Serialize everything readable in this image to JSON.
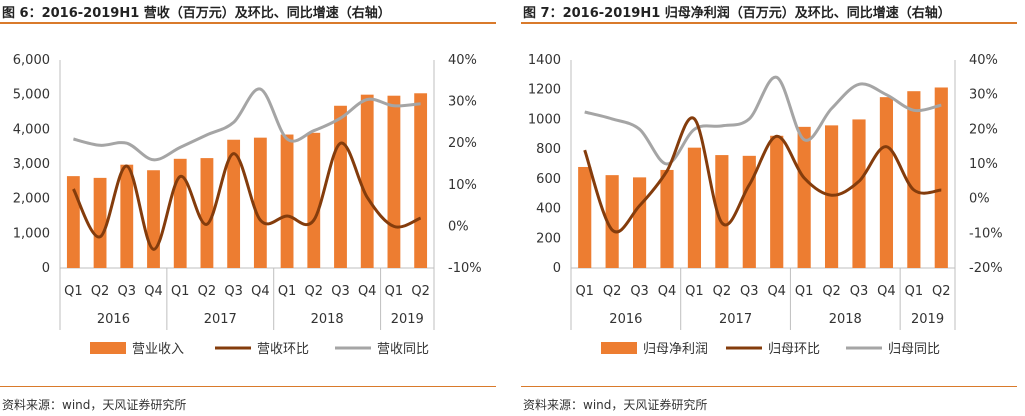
{
  "colors": {
    "bar": "#ed7d31",
    "mom": "#843c0c",
    "yoy": "#a5a5a5",
    "axis": "#bfbfbf",
    "accent": "#d97a2b"
  },
  "left": {
    "title": "图 6：2016-2019H1 营收（百万元）及环比、同比增速（右轴）",
    "source": "资料来源：wind，天风证券研究所",
    "chart_data": {
      "type": "bar",
      "categories": [
        "Q1",
        "Q2",
        "Q3",
        "Q4",
        "Q1",
        "Q2",
        "Q3",
        "Q4",
        "Q1",
        "Q2",
        "Q3",
        "Q4",
        "Q1",
        "Q2"
      ],
      "year_labels": [
        "2016",
        "2017",
        "2018",
        "2019"
      ],
      "year_spans": [
        4,
        4,
        4,
        2
      ],
      "left_ticks": [
        "6,000",
        "5,000",
        "4,000",
        "3,000",
        "2,000",
        "1,000",
        "0"
      ],
      "right_ticks": [
        "40%",
        "30%",
        "20%",
        "10%",
        "0%",
        "-10%"
      ],
      "ylim_left": [
        0,
        6000
      ],
      "ylim_right": [
        -10,
        40
      ],
      "grid": false,
      "legend_position": "bottom",
      "series": [
        {
          "name": "营业收入",
          "type": "bar",
          "axis": "left",
          "values": [
            2650,
            2600,
            2980,
            2820,
            3150,
            3170,
            3700,
            3760,
            3850,
            3900,
            4680,
            5000,
            4970,
            5040
          ]
        },
        {
          "name": "营收环比",
          "type": "line",
          "axis": "right",
          "values": [
            9,
            -2.5,
            14.5,
            -5.5,
            12,
            0.5,
            17.5,
            1.5,
            2.5,
            1.5,
            20,
            7,
            0,
            2
          ]
        },
        {
          "name": "营收同比",
          "type": "line",
          "axis": "right",
          "values": [
            21,
            19.5,
            20,
            16,
            19,
            22,
            25,
            33,
            21,
            23,
            26,
            30.5,
            29,
            29.5
          ]
        }
      ]
    }
  },
  "right": {
    "title": "图 7：2016-2019H1 归母净利润（百万元）及环比、同比增速（右轴）",
    "source": "资料来源：wind，天风证券研究所",
    "chart_data": {
      "type": "bar",
      "categories": [
        "Q1",
        "Q2",
        "Q3",
        "Q4",
        "Q1",
        "Q2",
        "Q3",
        "Q4",
        "Q1",
        "Q2",
        "Q3",
        "Q4",
        "Q1",
        "Q2"
      ],
      "year_labels": [
        "2016",
        "2017",
        "2018",
        "2019"
      ],
      "year_spans": [
        4,
        4,
        4,
        2
      ],
      "left_ticks": [
        "1400",
        "1200",
        "1000",
        "800",
        "600",
        "400",
        "200",
        "0"
      ],
      "right_ticks": [
        "40%",
        "30%",
        "20%",
        "10%",
        "0%",
        "-10%",
        "-20%"
      ],
      "ylim_left": [
        0,
        1400
      ],
      "ylim_right": [
        -20,
        40
      ],
      "grid": false,
      "legend_position": "bottom",
      "series": [
        {
          "name": "归母净利润",
          "type": "bar",
          "axis": "left",
          "values": [
            680,
            625,
            610,
            660,
            810,
            760,
            755,
            890,
            950,
            960,
            1000,
            1150,
            1190,
            1215
          ]
        },
        {
          "name": "归母环比",
          "type": "line",
          "axis": "right",
          "values": [
            14,
            -9,
            -2,
            8,
            23,
            -7,
            4,
            18,
            6,
            1,
            5,
            15,
            2.5,
            2.5
          ]
        },
        {
          "name": "归母同比",
          "type": "line",
          "axis": "right",
          "values": [
            25,
            23,
            20,
            10,
            20,
            21,
            23,
            35,
            17,
            26,
            33,
            30,
            25.5,
            27
          ]
        }
      ]
    }
  }
}
